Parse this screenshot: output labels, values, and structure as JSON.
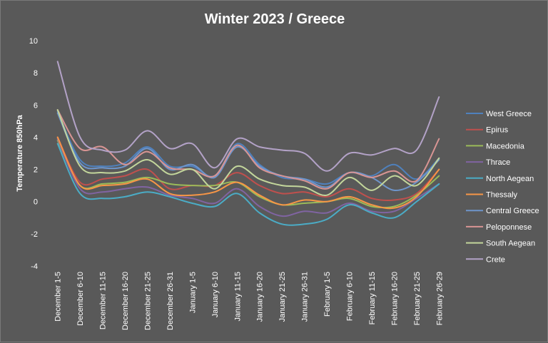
{
  "chart_data": {
    "type": "line",
    "title": "Winter 2023 / Greece",
    "xlabel": "",
    "ylabel": "Temperature 850hPa",
    "ylim": [
      -4,
      10
    ],
    "yticks": [
      -4,
      -2,
      0,
      2,
      4,
      6,
      8,
      10
    ],
    "grid": false,
    "legend_position": "right",
    "smooth": true,
    "categories": [
      "December 1-5",
      "December 6-10",
      "December 11-15",
      "December 16-20",
      "December 21-25",
      "December 26-31",
      "January 1-5",
      "January 6-10",
      "January 11-15",
      "January 16-20",
      "January 21-25",
      "January 26-31",
      "February 1-5",
      "February 6-10",
      "February 11-15",
      "February 16-20",
      "February 21-25",
      "February 26-29"
    ],
    "series": [
      {
        "name": "West Greece",
        "color": "#4f81bd",
        "values": [
          5.6,
          2.6,
          2.2,
          2.4,
          3.4,
          2.2,
          2.2,
          1.6,
          3.6,
          2.3,
          1.5,
          1.4,
          1.1,
          1.8,
          1.6,
          2.3,
          1.4,
          2.7
        ]
      },
      {
        "name": "Epirus",
        "color": "#c0504d",
        "values": [
          4.0,
          1.2,
          1.4,
          1.6,
          2.0,
          0.8,
          1.0,
          1.0,
          1.8,
          1.0,
          0.5,
          0.6,
          0.3,
          0.8,
          0.2,
          0.1,
          0.5,
          2.0
        ]
      },
      {
        "name": "Macedonia",
        "color": "#9bbb59",
        "values": [
          3.8,
          1.0,
          1.1,
          1.2,
          1.5,
          1.1,
          1.0,
          1.0,
          1.2,
          0.3,
          -0.2,
          -0.1,
          0.0,
          0.2,
          -0.3,
          -0.3,
          0.4,
          1.6
        ]
      },
      {
        "name": "Thrace",
        "color": "#8064a2",
        "values": [
          3.9,
          0.8,
          0.6,
          0.8,
          0.9,
          0.4,
          0.2,
          -0.1,
          0.8,
          -0.3,
          -0.9,
          -0.6,
          -0.7,
          -0.1,
          -0.6,
          -0.6,
          0.2,
          1.1
        ]
      },
      {
        "name": "North Aegean",
        "color": "#4bacc6",
        "values": [
          3.6,
          0.5,
          0.2,
          0.3,
          0.6,
          0.3,
          -0.1,
          -0.3,
          0.5,
          -0.7,
          -1.4,
          -1.4,
          -1.1,
          -0.2,
          -0.7,
          -1.0,
          0.0,
          1.1
        ]
      },
      {
        "name": "Thessaly",
        "color": "#f79646",
        "values": [
          4.0,
          1.0,
          1.0,
          1.1,
          1.4,
          0.5,
          0.4,
          0.6,
          1.2,
          0.4,
          -0.2,
          0.1,
          0.0,
          0.3,
          -0.2,
          -0.4,
          0.3,
          2.0
        ]
      },
      {
        "name": "Central Greece",
        "color": "#6e95cb",
        "values": [
          5.5,
          2.4,
          2.1,
          2.2,
          3.3,
          2.0,
          2.3,
          1.5,
          3.4,
          2.2,
          1.6,
          1.4,
          0.9,
          1.8,
          1.5,
          0.7,
          1.2,
          2.6
        ]
      },
      {
        "name": "Peloponnese",
        "color": "#d99594",
        "values": [
          5.7,
          3.3,
          3.4,
          2.3,
          3.1,
          2.1,
          2.0,
          1.6,
          3.5,
          2.1,
          1.6,
          1.3,
          0.8,
          1.8,
          1.5,
          1.9,
          1.3,
          3.9
        ]
      },
      {
        "name": "South Aegean",
        "color": "#c3d69b",
        "values": [
          5.7,
          2.2,
          1.8,
          1.9,
          2.6,
          1.7,
          2.0,
          0.8,
          2.2,
          1.4,
          1.0,
          0.9,
          0.4,
          1.5,
          0.7,
          1.6,
          1.0,
          2.7
        ]
      },
      {
        "name": "Crete",
        "color": "#b3a2c7",
        "values": [
          8.7,
          4.0,
          3.2,
          3.2,
          4.4,
          3.3,
          3.6,
          2.1,
          3.9,
          3.4,
          3.2,
          3.0,
          1.9,
          3.0,
          2.9,
          3.3,
          3.2,
          6.5
        ]
      }
    ]
  }
}
